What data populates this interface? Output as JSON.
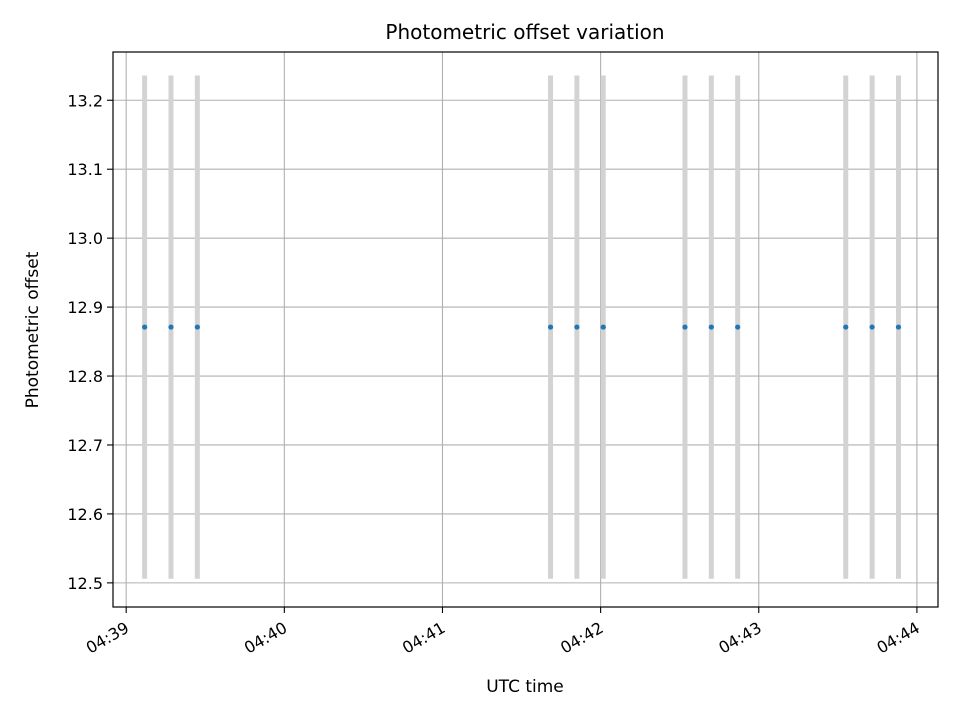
{
  "chart_data": {
    "type": "scatter",
    "title": "Photometric offset variation",
    "xlabel": "UTC time",
    "ylabel": "Photometric offset",
    "x_tick_labels": [
      "04:39",
      "04:40",
      "04:41",
      "04:42",
      "04:43",
      "04:44"
    ],
    "y_tick_labels": [
      "12.5",
      "12.6",
      "12.7",
      "12.8",
      "12.9",
      "13.0",
      "13.1",
      "13.2"
    ],
    "xlim": [
      "04:38:55",
      "04:44:08"
    ],
    "ylim": [
      12.465,
      13.27
    ],
    "grid": true,
    "error_bar_color": "#d3d3d3",
    "point_color": "#1f77b4",
    "series": [
      {
        "x": [
          "04:39:07",
          "04:39:17",
          "04:39:27",
          "04:41:41",
          "04:41:51",
          "04:42:01",
          "04:42:32",
          "04:42:42",
          "04:42:52",
          "04:43:33",
          "04:43:43",
          "04:43:53"
        ],
        "y": [
          12.871,
          12.871,
          12.871,
          12.871,
          12.871,
          12.871,
          12.871,
          12.871,
          12.871,
          12.871,
          12.871,
          12.871
        ],
        "y_err": [
          0.365,
          0.365,
          0.365,
          0.365,
          0.365,
          0.365,
          0.365,
          0.365,
          0.365,
          0.365,
          0.365,
          0.365
        ]
      }
    ]
  }
}
